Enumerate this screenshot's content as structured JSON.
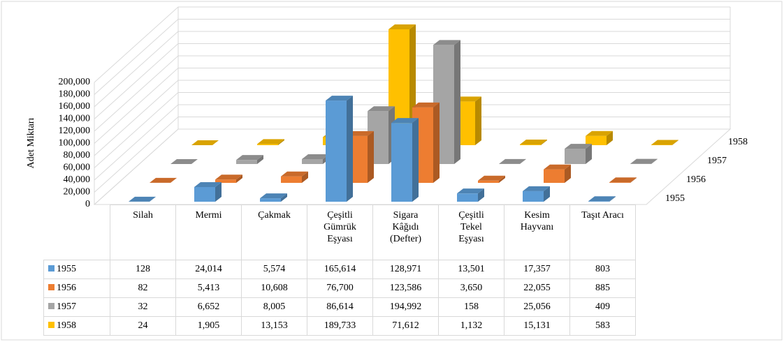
{
  "chart_data": {
    "type": "bar3d",
    "y_label": "Adet Miktarı",
    "categories": [
      "Silah",
      "Mermi",
      "Çakmak",
      "Çeşitli Gümrük Eşyası",
      "Sigara Kâğıdı (Defter)",
      "Çeşitli Tekel Eşyası",
      "Kesim Hayvanı",
      "Taşıt Aracı"
    ],
    "series": [
      {
        "name": "1955",
        "color": "#5b9bd5",
        "values": [
          128,
          24014,
          5574,
          165614,
          128971,
          13501,
          17357,
          803
        ],
        "value_labels": [
          "128",
          "24,014",
          "5,574",
          "165,614",
          "128,971",
          "13,501",
          "17,357",
          "803"
        ]
      },
      {
        "name": "1956",
        "color": "#ed7d31",
        "values": [
          82,
          5413,
          10608,
          76700,
          123586,
          3650,
          22055,
          885
        ],
        "value_labels": [
          "82",
          "5,413",
          "10,608",
          "76,700",
          "123,586",
          "3,650",
          "22,055",
          "885"
        ]
      },
      {
        "name": "1957",
        "color": "#a5a5a5",
        "values": [
          32,
          6652,
          8005,
          86614,
          194992,
          158,
          25056,
          409
        ],
        "value_labels": [
          "32",
          "6,652",
          "8,005",
          "86,614",
          "194,992",
          "158",
          "25,056",
          "409"
        ]
      },
      {
        "name": "1958",
        "color": "#ffc000",
        "values": [
          24,
          1905,
          13153,
          189733,
          71612,
          1132,
          15131,
          583
        ],
        "value_labels": [
          "24",
          "1,905",
          "13,153",
          "189,733",
          "71,612",
          "1,132",
          "15,131",
          "583"
        ]
      }
    ],
    "ylim": [
      0,
      200000
    ],
    "yticks": [
      0,
      {
        "value": 20000,
        "label": "20,000"
      },
      {
        "value": 40000,
        "label": "40,000"
      },
      {
        "value": 60000,
        "label": "60,000"
      },
      {
        "value": 80000,
        "label": "80,000"
      },
      {
        "value": 100000,
        "label": "100,000"
      },
      {
        "value": 120000,
        "label": "120,000"
      },
      {
        "value": 140000,
        "label": "140,000"
      },
      {
        "value": 160000,
        "label": "160,000"
      },
      {
        "value": 180000,
        "label": "180,000"
      },
      {
        "value": 200000,
        "label": "200,000"
      }
    ],
    "grid": true
  }
}
